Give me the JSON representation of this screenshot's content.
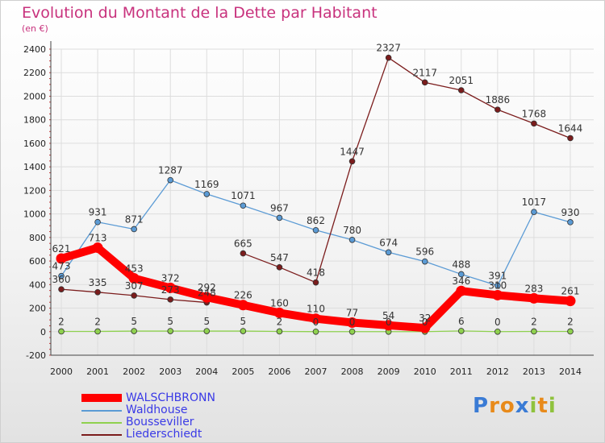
{
  "header": {
    "title": "Evolution du Montant de la Dette par Habitant",
    "subtitle": "(en €)"
  },
  "colors": {
    "title": "#c8327d",
    "grid": "#dddddd",
    "axis_text": "#222222",
    "legend_text": "#3a3ae6"
  },
  "chart_data": {
    "type": "line",
    "title": "Evolution du Montant de la Dette par Habitant",
    "subtitle": "(en €)",
    "x": [
      "2000",
      "2001",
      "2002",
      "2003",
      "2004",
      "2005",
      "2006",
      "2007",
      "2008",
      "2009",
      "2010",
      "2011",
      "2012",
      "2013",
      "2014"
    ],
    "ylim": [
      -200,
      2400
    ],
    "yticks": [
      -200,
      0,
      200,
      400,
      600,
      800,
      1000,
      1200,
      1400,
      1600,
      1800,
      2000,
      2200,
      2400
    ],
    "grid": true,
    "legend_position": "bottom-left",
    "series": [
      {
        "name": "WALSCHBRONN",
        "color": "#ff0000",
        "highlight": true,
        "values": [
          621,
          713,
          453,
          372,
          292,
          226,
          160,
          110,
          77,
          54,
          32,
          346,
          310,
          283,
          261
        ],
        "labels": [
          "621",
          "713",
          "453",
          "372",
          "292",
          "226",
          "160",
          "110",
          "77",
          "54",
          "32",
          "346",
          "310",
          "283",
          "261"
        ],
        "gaps_after": []
      },
      {
        "name": "Waldhouse",
        "color": "#5b9bd5",
        "highlight": false,
        "values": [
          473,
          931,
          871,
          1287,
          1169,
          1071,
          967,
          862,
          780,
          674,
          596,
          488,
          391,
          1017,
          930
        ],
        "labels": [
          "473",
          "931",
          "871",
          "1287",
          "1169",
          "1071",
          "967",
          "862",
          "780",
          "674",
          "596",
          "488",
          "391",
          "1017",
          "930"
        ],
        "gaps_after": []
      },
      {
        "name": "Bousseviller",
        "color": "#8fd14f",
        "highlight": false,
        "values": [
          2,
          2,
          5,
          5,
          5,
          5,
          2,
          0,
          0,
          0,
          0,
          6,
          0,
          2,
          2
        ],
        "labels": [
          "2",
          "2",
          "5",
          "5",
          "5",
          "5",
          "2",
          "0",
          "0",
          "0",
          "0",
          "6",
          "0",
          "2",
          "2"
        ],
        "gaps_after": []
      },
      {
        "name": "Liederschiedt",
        "color": "#7b1c1c",
        "highlight": false,
        "values": [
          360,
          335,
          307,
          273,
          248,
          665,
          547,
          418,
          1447,
          2327,
          2117,
          2051,
          1886,
          1768,
          1644
        ],
        "labels": [
          "360",
          "335",
          "307",
          "273",
          "248",
          "665",
          "547",
          "418",
          "1447",
          "2327",
          "2117",
          "2051",
          "1886",
          "1768",
          "1644"
        ],
        "gaps_after": [
          4
        ]
      }
    ]
  },
  "legend": {
    "items": [
      {
        "label": "WALSCHBRONN"
      },
      {
        "label": "Waldhouse"
      },
      {
        "label": "Bousseviller"
      },
      {
        "label": "Liederschiedt"
      }
    ]
  },
  "logo": {
    "letters": [
      "P",
      "r",
      "o",
      "x",
      "i",
      "t",
      "i"
    ],
    "colors": [
      "#3a7bd5",
      "#e88a1a",
      "#e88a1a",
      "#3a7bd5",
      "#8fc23d",
      "#e88a1a",
      "#8fc23d"
    ]
  }
}
